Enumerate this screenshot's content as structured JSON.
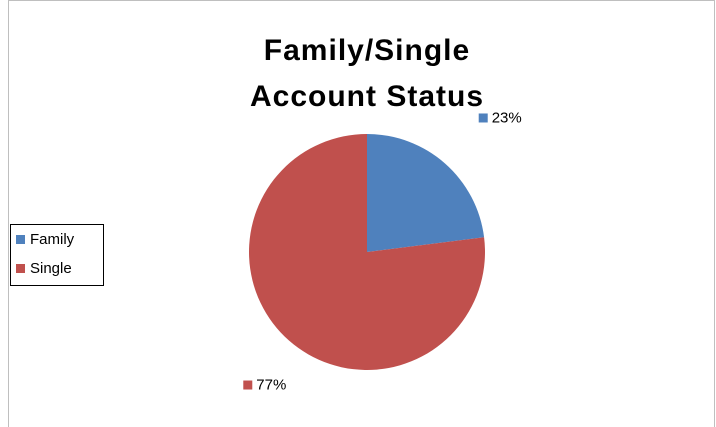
{
  "chart_data": {
    "type": "pie",
    "title": "Family/Single Account Status",
    "categories": [
      "Family",
      "Single"
    ],
    "values": [
      23,
      77
    ],
    "value_labels": [
      "23%",
      "77%"
    ],
    "colors": [
      "#4f81bd",
      "#c0504d"
    ],
    "legend": "left"
  }
}
